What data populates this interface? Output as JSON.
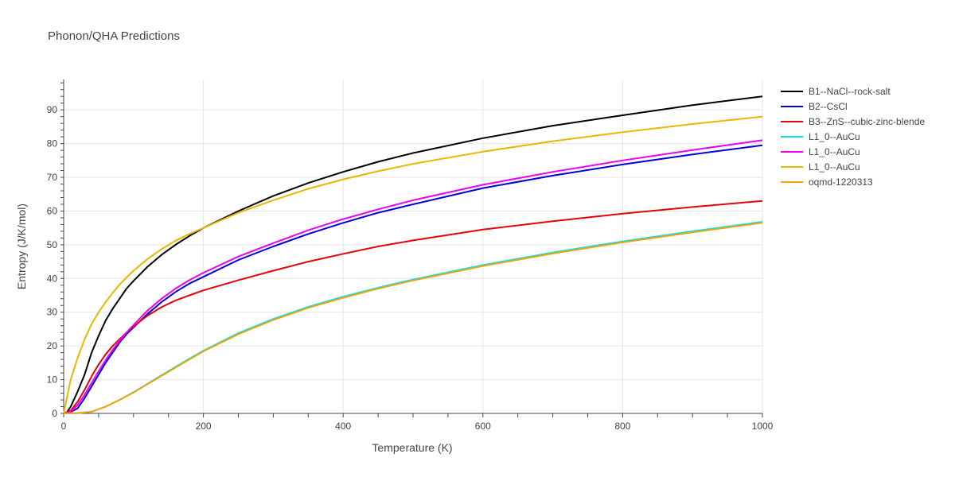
{
  "chart_data": {
    "type": "line",
    "title": "Phonon/QHA Predictions",
    "xlabel": "Temperature (K)",
    "ylabel": "Entropy (J/K/mol)",
    "xlim": [
      0,
      1000
    ],
    "ylim": [
      0,
      99
    ],
    "x_ticks": [
      0,
      200,
      400,
      600,
      800,
      1000
    ],
    "y_ticks": [
      0,
      10,
      20,
      30,
      40,
      50,
      60,
      70,
      80,
      90
    ],
    "grid": true,
    "legend_position": "right",
    "series": [
      {
        "name": "B1--NaCl--rock-salt",
        "color": "#000000",
        "points": [
          [
            0,
            0
          ],
          [
            5,
            0.4
          ],
          [
            10,
            2
          ],
          [
            20,
            6.5
          ],
          [
            30,
            11.5
          ],
          [
            40,
            18
          ],
          [
            50,
            23
          ],
          [
            60,
            27.5
          ],
          [
            70,
            31
          ],
          [
            80,
            34
          ],
          [
            90,
            37
          ],
          [
            100,
            39.3
          ],
          [
            120,
            43.5
          ],
          [
            140,
            47
          ],
          [
            160,
            50
          ],
          [
            180,
            52.6
          ],
          [
            200,
            55
          ],
          [
            250,
            60
          ],
          [
            300,
            64.5
          ],
          [
            350,
            68.3
          ],
          [
            400,
            71.6
          ],
          [
            450,
            74.6
          ],
          [
            500,
            77.2
          ],
          [
            600,
            81.6
          ],
          [
            700,
            85.3
          ],
          [
            800,
            88.4
          ],
          [
            900,
            91.4
          ],
          [
            1000,
            94
          ]
        ]
      },
      {
        "name": "B2--CsCl",
        "color": "#0000dd",
        "points": [
          [
            0,
            0
          ],
          [
            10,
            0.4
          ],
          [
            20,
            1.5
          ],
          [
            30,
            4.5
          ],
          [
            40,
            8
          ],
          [
            50,
            11.5
          ],
          [
            60,
            15
          ],
          [
            70,
            18
          ],
          [
            80,
            21
          ],
          [
            90,
            23.5
          ],
          [
            100,
            25.5
          ],
          [
            120,
            29.5
          ],
          [
            140,
            33
          ],
          [
            160,
            36
          ],
          [
            180,
            38.5
          ],
          [
            200,
            40.5
          ],
          [
            250,
            45.5
          ],
          [
            300,
            49.5
          ],
          [
            350,
            53.2
          ],
          [
            400,
            56.5
          ],
          [
            450,
            59.5
          ],
          [
            500,
            62
          ],
          [
            600,
            66.8
          ],
          [
            700,
            70.5
          ],
          [
            800,
            73.8
          ],
          [
            900,
            76.8
          ],
          [
            1000,
            79.5
          ]
        ]
      },
      {
        "name": "B3--ZnS--cubic-zinc-blende",
        "color": "#e8000b",
        "points": [
          [
            0,
            0
          ],
          [
            10,
            0.8
          ],
          [
            20,
            3.5
          ],
          [
            30,
            7
          ],
          [
            40,
            11
          ],
          [
            50,
            14.5
          ],
          [
            60,
            17.5
          ],
          [
            70,
            20
          ],
          [
            80,
            22
          ],
          [
            90,
            24
          ],
          [
            100,
            25.8
          ],
          [
            120,
            29
          ],
          [
            140,
            31.5
          ],
          [
            160,
            33.5
          ],
          [
            180,
            35
          ],
          [
            200,
            36.5
          ],
          [
            250,
            39.5
          ],
          [
            300,
            42.3
          ],
          [
            350,
            45
          ],
          [
            400,
            47.3
          ],
          [
            450,
            49.5
          ],
          [
            500,
            51.3
          ],
          [
            600,
            54.5
          ],
          [
            700,
            57
          ],
          [
            800,
            59.2
          ],
          [
            900,
            61.2
          ],
          [
            1000,
            63
          ]
        ]
      },
      {
        "name": "L1_0--AuCu",
        "color": "#00e5ee",
        "points": [
          [
            0,
            0
          ],
          [
            20,
            0.1
          ],
          [
            40,
            0.5
          ],
          [
            60,
            2
          ],
          [
            80,
            4
          ],
          [
            100,
            6.3
          ],
          [
            120,
            8.8
          ],
          [
            140,
            11.3
          ],
          [
            160,
            13.8
          ],
          [
            180,
            16.2
          ],
          [
            200,
            18.6
          ],
          [
            250,
            23.8
          ],
          [
            300,
            28
          ],
          [
            350,
            31.6
          ],
          [
            400,
            34.6
          ],
          [
            450,
            37.3
          ],
          [
            500,
            39.7
          ],
          [
            600,
            44
          ],
          [
            700,
            47.7
          ],
          [
            800,
            51
          ],
          [
            900,
            54
          ],
          [
            1000,
            56.8
          ]
        ]
      },
      {
        "name": "L1_0--AuCu",
        "color": "#ee00ee",
        "points": [
          [
            0,
            0
          ],
          [
            10,
            0.5
          ],
          [
            20,
            2.5
          ],
          [
            30,
            5.5
          ],
          [
            40,
            9
          ],
          [
            50,
            12.5
          ],
          [
            60,
            15.8
          ],
          [
            70,
            18.8
          ],
          [
            80,
            21.5
          ],
          [
            90,
            24
          ],
          [
            100,
            26.2
          ],
          [
            120,
            30.5
          ],
          [
            140,
            34
          ],
          [
            160,
            37
          ],
          [
            180,
            39.5
          ],
          [
            200,
            41.7
          ],
          [
            250,
            46.5
          ],
          [
            300,
            50.5
          ],
          [
            350,
            54.3
          ],
          [
            400,
            57.6
          ],
          [
            450,
            60.5
          ],
          [
            500,
            63.2
          ],
          [
            600,
            67.8
          ],
          [
            700,
            71.6
          ],
          [
            800,
            75
          ],
          [
            900,
            78.1
          ],
          [
            1000,
            81
          ]
        ]
      },
      {
        "name": "L1_0--AuCu",
        "color": "#e6b800",
        "points": [
          [
            0,
            0
          ],
          [
            5,
            5
          ],
          [
            10,
            10
          ],
          [
            20,
            16.5
          ],
          [
            30,
            22
          ],
          [
            40,
            26.5
          ],
          [
            50,
            30
          ],
          [
            60,
            33
          ],
          [
            70,
            35.7
          ],
          [
            80,
            38.2
          ],
          [
            90,
            40.3
          ],
          [
            100,
            42.3
          ],
          [
            120,
            45.8
          ],
          [
            140,
            48.7
          ],
          [
            160,
            51.2
          ],
          [
            180,
            53.2
          ],
          [
            200,
            55
          ],
          [
            250,
            59.5
          ],
          [
            300,
            63.2
          ],
          [
            350,
            66.6
          ],
          [
            400,
            69.4
          ],
          [
            450,
            71.8
          ],
          [
            500,
            74
          ],
          [
            600,
            77.6
          ],
          [
            700,
            80.7
          ],
          [
            800,
            83.4
          ],
          [
            900,
            85.8
          ],
          [
            1000,
            88
          ]
        ]
      },
      {
        "name": "oqmd-1220313",
        "color": "#f0a30a",
        "points": [
          [
            0,
            0
          ],
          [
            20,
            0.1
          ],
          [
            40,
            0.5
          ],
          [
            60,
            2
          ],
          [
            80,
            4
          ],
          [
            100,
            6.2
          ],
          [
            120,
            8.7
          ],
          [
            140,
            11.1
          ],
          [
            160,
            13.6
          ],
          [
            180,
            16
          ],
          [
            200,
            18.4
          ],
          [
            250,
            23.5
          ],
          [
            300,
            27.7
          ],
          [
            350,
            31.3
          ],
          [
            400,
            34.3
          ],
          [
            450,
            37
          ],
          [
            500,
            39.4
          ],
          [
            600,
            43.7
          ],
          [
            700,
            47.4
          ],
          [
            800,
            50.7
          ],
          [
            900,
            53.7
          ],
          [
            1000,
            56.5
          ]
        ]
      }
    ]
  }
}
